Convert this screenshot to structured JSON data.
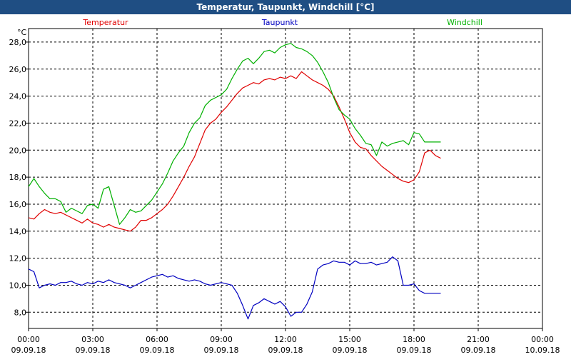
{
  "window": {
    "title": "Temperatur, Taupunkt, Windchill [°C]"
  },
  "chart_data": {
    "type": "line",
    "title": "Temperatur, Taupunkt, Windchill [°C]",
    "y_unit": "°C",
    "ylim": [
      6.8,
      29.0
    ],
    "yticks": [
      "28,0",
      "26,0",
      "24,0",
      "22,0",
      "20,0",
      "18,0",
      "16,0",
      "14,0",
      "12,0",
      "10,0",
      "8,0"
    ],
    "ytick_values": [
      28,
      26,
      24,
      22,
      20,
      18,
      16,
      14,
      12,
      10,
      8
    ],
    "x_hours": [
      0,
      0.25,
      0.5,
      0.75,
      1,
      1.25,
      1.5,
      1.75,
      2,
      2.25,
      2.5,
      2.75,
      3,
      3.25,
      3.5,
      3.75,
      4,
      4.25,
      4.5,
      4.75,
      5,
      5.25,
      5.5,
      5.75,
      6,
      6.25,
      6.5,
      6.75,
      7,
      7.25,
      7.5,
      7.75,
      8,
      8.25,
      8.5,
      8.75,
      9,
      9.25,
      9.5,
      9.75,
      10,
      10.25,
      10.5,
      10.75,
      11,
      11.25,
      11.5,
      11.75,
      12,
      12.25,
      12.5,
      12.75,
      13,
      13.25,
      13.5,
      13.75,
      14,
      14.25,
      14.5,
      14.75,
      15,
      15.25,
      15.5,
      15.75,
      16,
      16.25,
      16.5,
      16.75,
      17,
      17.25,
      17.5,
      17.75,
      18,
      18.25,
      18.5,
      18.75,
      19,
      19.25,
      19.5,
      19.75,
      20,
      20.25,
      20.5,
      20.75,
      21,
      21.25,
      21.5,
      21.75,
      22,
      22.25,
      22.5,
      22.75,
      23,
      23.25,
      23.5,
      23.75
    ],
    "xticks": [
      {
        "h": 0,
        "time": "00:00",
        "date": "09.09.18"
      },
      {
        "h": 3,
        "time": "03:00",
        "date": "09.09.18"
      },
      {
        "h": 6,
        "time": "06:00",
        "date": "09.09.18"
      },
      {
        "h": 9,
        "time": "09:00",
        "date": "09.09.18"
      },
      {
        "h": 12,
        "time": "12:00",
        "date": "09.09.18"
      },
      {
        "h": 15,
        "time": "15:00",
        "date": "09.09.18"
      },
      {
        "h": 18,
        "time": "18:00",
        "date": "09.09.18"
      },
      {
        "h": 21,
        "time": "21:00",
        "date": "09.09.18"
      },
      {
        "h": 24,
        "time": "00:00",
        "date": "10.09.18"
      }
    ],
    "grid": true,
    "series": [
      {
        "name": "Temperatur",
        "color": "#e00000",
        "values": [
          15.0,
          14.9,
          15.3,
          15.6,
          15.4,
          15.3,
          15.4,
          15.2,
          15.0,
          14.8,
          14.6,
          14.9,
          14.6,
          14.5,
          14.3,
          14.5,
          14.3,
          14.2,
          14.1,
          14.0,
          14.3,
          14.8,
          14.8,
          15.0,
          15.3,
          15.6,
          16.0,
          16.6,
          17.3,
          18.0,
          18.8,
          19.5,
          20.5,
          21.5,
          22.0,
          22.3,
          22.8,
          23.2,
          23.7,
          24.2,
          24.6,
          24.8,
          25.0,
          24.9,
          25.2,
          25.3,
          25.2,
          25.4,
          25.3,
          25.5,
          25.3,
          25.8,
          25.5,
          25.2,
          25.0,
          24.8,
          24.5,
          24.0,
          23.2,
          22.3,
          21.3,
          20.6,
          20.2,
          20.1,
          19.6,
          19.2,
          18.8,
          18.5,
          18.2,
          17.9,
          17.7,
          17.6,
          17.8,
          18.4,
          19.8,
          20.0,
          19.6,
          19.4
        ]
      },
      {
        "name": "Taupunkt",
        "color": "#0000c0",
        "values": [
          11.2,
          11.0,
          9.8,
          10.0,
          10.1,
          10.0,
          10.2,
          10.2,
          10.3,
          10.1,
          10.0,
          10.2,
          10.1,
          10.3,
          10.2,
          10.4,
          10.2,
          10.1,
          10.0,
          9.8,
          10.0,
          10.2,
          10.4,
          10.6,
          10.7,
          10.8,
          10.6,
          10.7,
          10.5,
          10.4,
          10.3,
          10.4,
          10.3,
          10.1,
          10.0,
          10.1,
          10.2,
          10.1,
          10.0,
          9.4,
          8.5,
          7.5,
          8.5,
          8.7,
          9.0,
          8.8,
          8.6,
          8.8,
          8.4,
          7.7,
          8.0,
          8.0,
          8.6,
          9.5,
          11.2,
          11.5,
          11.6,
          11.8,
          11.7,
          11.7,
          11.5,
          11.8,
          11.6,
          11.6,
          11.7,
          11.5,
          11.6,
          11.7,
          12.1,
          11.8,
          10.0,
          10.0,
          10.1,
          9.6,
          9.4,
          9.4,
          9.4,
          9.4
        ]
      },
      {
        "name": "Windchill",
        "color": "#00b000",
        "values": [
          17.3,
          17.9,
          17.3,
          16.8,
          16.4,
          16.4,
          16.2,
          15.4,
          15.7,
          15.5,
          15.3,
          15.9,
          16.0,
          15.7,
          17.1,
          17.3,
          15.9,
          14.5,
          15.0,
          15.6,
          15.4,
          15.5,
          15.9,
          16.3,
          16.9,
          17.5,
          18.3,
          19.2,
          19.8,
          20.3,
          21.3,
          22.0,
          22.4,
          23.3,
          23.7,
          23.9,
          24.1,
          24.5,
          25.3,
          26.0,
          26.6,
          26.8,
          26.4,
          26.8,
          27.3,
          27.4,
          27.2,
          27.6,
          27.8,
          27.9,
          27.6,
          27.5,
          27.3,
          27.0,
          26.5,
          25.8,
          25.0,
          23.9,
          23.0,
          22.6,
          22.3,
          21.6,
          21.1,
          20.5,
          20.4,
          19.6,
          20.6,
          20.3,
          20.5,
          20.6,
          20.7,
          20.4,
          21.3,
          21.2,
          20.6,
          20.6,
          20.6,
          20.6
        ]
      }
    ]
  }
}
